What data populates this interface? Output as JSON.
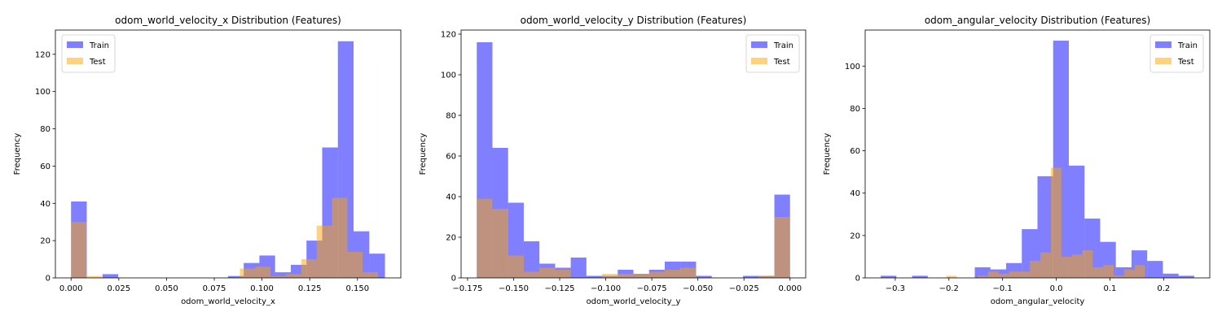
{
  "colors": {
    "train": "#0000ff",
    "test": "#ffa500",
    "train_alpha": 0.5,
    "test_alpha": 0.5
  },
  "chart_data": [
    {
      "type": "histogram",
      "title": "odom_world_velocity_x Distribution (Features)",
      "xlabel": "odom_world_velocity_x",
      "ylabel": "Frequency",
      "xlim": [
        -0.0082,
        0.1727
      ],
      "ylim": [
        0,
        133
      ],
      "xticks": [
        0.0,
        0.025,
        0.05,
        0.075,
        0.1,
        0.125,
        0.15
      ],
      "xtick_labels": [
        "0.000",
        "0.025",
        "0.050",
        "0.075",
        "0.100",
        "0.125",
        "0.150"
      ],
      "yticks": [
        0,
        20,
        40,
        60,
        80,
        100,
        120
      ],
      "ytick_labels": [
        "0",
        "20",
        "40",
        "60",
        "80",
        "100",
        "120"
      ],
      "legend": {
        "position": "top-left",
        "entries": [
          "Train",
          "Test"
        ]
      },
      "series": [
        {
          "name": "Train",
          "bin_edges": [
            0.0,
            0.00822,
            0.01644,
            0.02466,
            0.03288,
            0.0411,
            0.04932,
            0.05754,
            0.06576,
            0.07398,
            0.0822,
            0.09042,
            0.09864,
            0.10686,
            0.11508,
            0.1233,
            0.13152,
            0.13974,
            0.14796,
            0.15618,
            0.1644
          ],
          "counts": [
            41,
            0,
            2,
            0,
            0,
            0,
            0,
            0,
            0,
            0,
            1,
            8,
            12,
            3,
            7,
            20,
            70,
            127,
            25,
            13
          ]
        },
        {
          "name": "Test",
          "bin_edges": [
            0.0,
            0.00804,
            0.01608,
            0.02412,
            0.03216,
            0.0402,
            0.04824,
            0.05628,
            0.06432,
            0.07236,
            0.0804,
            0.08844,
            0.09648,
            0.10452,
            0.11256,
            0.1206,
            0.12864,
            0.13668,
            0.14472,
            0.15276,
            0.1608
          ],
          "counts": [
            30,
            1,
            0,
            0,
            0,
            0,
            0,
            0,
            0,
            0,
            0,
            5,
            6,
            1,
            2,
            10,
            28,
            43,
            14,
            3
          ]
        }
      ]
    },
    {
      "type": "histogram",
      "title": "odom_world_velocity_y Distribution (Features)",
      "xlabel": "odom_world_velocity_y",
      "ylabel": "Frequency",
      "xlim": [
        -0.1785,
        0.0085
      ],
      "ylim": [
        0,
        122
      ],
      "xticks": [
        -0.175,
        -0.15,
        -0.125,
        -0.1,
        -0.075,
        -0.05,
        -0.025,
        0.0
      ],
      "xtick_labels": [
        "−0.175",
        "−0.150",
        "−0.125",
        "−0.100",
        "−0.075",
        "−0.050",
        "−0.025",
        "0.000"
      ],
      "yticks": [
        0,
        20,
        40,
        60,
        80,
        100,
        120
      ],
      "ytick_labels": [
        "0",
        "20",
        "40",
        "60",
        "80",
        "100",
        "120"
      ],
      "legend": {
        "position": "top-right",
        "entries": [
          "Train",
          "Test"
        ]
      },
      "series": [
        {
          "name": "Train",
          "bin_edges": [
            -0.17,
            -0.1615,
            -0.153,
            -0.1445,
            -0.136,
            -0.1275,
            -0.119,
            -0.1105,
            -0.102,
            -0.0935,
            -0.085,
            -0.0765,
            -0.068,
            -0.0595,
            -0.051,
            -0.0425,
            -0.034,
            -0.0255,
            -0.017,
            -0.0085,
            0.0
          ],
          "counts": [
            116,
            64,
            37,
            18,
            7,
            5,
            10,
            1,
            1,
            4,
            2,
            4,
            8,
            8,
            1,
            0,
            0,
            1,
            1,
            41
          ]
        },
        {
          "name": "Test",
          "bin_edges": [
            -0.17,
            -0.1615,
            -0.153,
            -0.1445,
            -0.136,
            -0.1275,
            -0.119,
            -0.1105,
            -0.102,
            -0.0935,
            -0.085,
            -0.0765,
            -0.068,
            -0.0595,
            -0.051,
            -0.0425,
            -0.034,
            -0.0255,
            -0.017,
            -0.0085,
            0.0
          ],
          "counts": [
            39,
            34,
            11,
            3,
            5,
            4,
            0,
            0,
            2,
            2,
            2,
            3,
            4,
            5,
            0,
            0,
            0,
            0,
            1,
            30
          ]
        }
      ]
    },
    {
      "type": "histogram",
      "title": "odom_angular_velocity Distribution (Features)",
      "xlabel": "odom_angular_velocity",
      "ylabel": "Frequency",
      "xlim": [
        -0.356,
        0.286
      ],
      "ylim": [
        0,
        117
      ],
      "xticks": [
        -0.3,
        -0.2,
        -0.1,
        0.0,
        0.1,
        0.2
      ],
      "xtick_labels": [
        "−0.3",
        "−0.2",
        "−0.1",
        "0.0",
        "0.1",
        "0.2"
      ],
      "yticks": [
        0,
        20,
        40,
        60,
        80,
        100
      ],
      "ytick_labels": [
        "0",
        "20",
        "40",
        "60",
        "80",
        "100"
      ],
      "legend": {
        "position": "top-right",
        "entries": [
          "Train",
          "Test"
        ]
      },
      "series": [
        {
          "name": "Train",
          "bin_edges": [
            -0.327,
            -0.2978,
            -0.2686,
            -0.2394,
            -0.2102,
            -0.181,
            -0.1518,
            -0.1226,
            -0.0934,
            -0.0642,
            -0.035,
            -0.0058,
            0.0234,
            0.0526,
            0.0818,
            0.111,
            0.1402,
            0.1694,
            0.1986,
            0.2278,
            0.257
          ],
          "counts": [
            1,
            0,
            1,
            0,
            0,
            0,
            5,
            4,
            7,
            23,
            48,
            112,
            53,
            28,
            17,
            5,
            13,
            8,
            2,
            1
          ]
        },
        {
          "name": "Test",
          "bin_edges": [
            -0.205,
            -0.1855,
            -0.166,
            -0.1465,
            -0.127,
            -0.1075,
            -0.088,
            -0.0685,
            -0.049,
            -0.0295,
            -0.01,
            0.0095,
            0.029,
            0.0485,
            0.068,
            0.0875,
            0.107,
            0.1265,
            0.146,
            0.1655,
            0.185
          ],
          "counts": [
            1,
            0,
            0,
            1,
            3,
            2,
            3,
            3,
            8,
            12,
            52,
            10,
            11,
            13,
            5,
            6,
            1,
            4,
            6,
            0
          ]
        }
      ]
    }
  ]
}
